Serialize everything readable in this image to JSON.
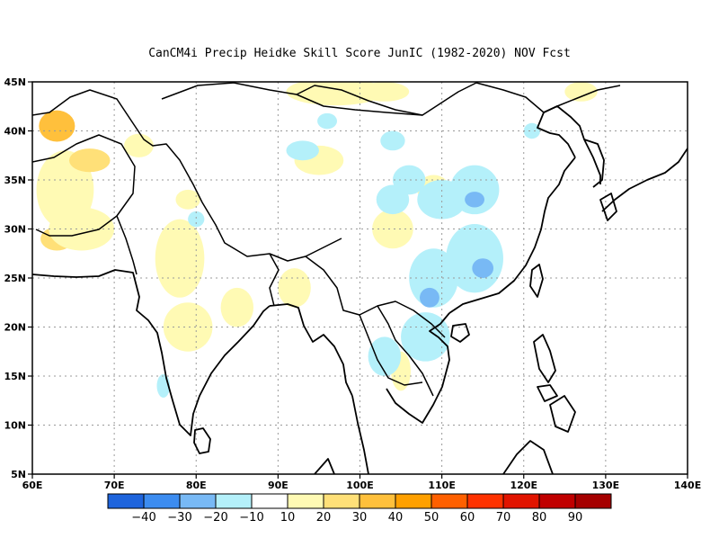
{
  "title": "CanCM4i Precip Heidke Skill Score JunIC (1982-2020) NOV Fcst",
  "map": {
    "lon_range": [
      60,
      140
    ],
    "lat_range": [
      5,
      45
    ],
    "lon_ticks": [
      "60E",
      "70E",
      "80E",
      "90E",
      "100E",
      "110E",
      "120E",
      "130E",
      "140E"
    ],
    "lat_ticks": [
      "5N",
      "10N",
      "15N",
      "20N",
      "25N",
      "30N",
      "35N",
      "40N",
      "45N"
    ],
    "grid": "dotted"
  },
  "colorbar": {
    "labels": [
      "-40",
      "-30",
      "-20",
      "-10",
      "10",
      "20",
      "30",
      "40",
      "50",
      "60",
      "70",
      "80",
      "90"
    ],
    "colors": [
      "#1e64dc",
      "#3c8cf0",
      "#78b9f5",
      "#b4f0fa",
      "#ffffff",
      "#fffab4",
      "#ffe078",
      "#ffc03c",
      "#ffa000",
      "#ff6000",
      "#ff3200",
      "#e11400",
      "#c00000",
      "#a50000"
    ]
  },
  "skill_patches": {
    "positive": [
      {
        "lon": 63,
        "lat": 40.5,
        "rx": 2.2,
        "ry": 1.6,
        "level": 2
      },
      {
        "lon": 64,
        "lat": 34,
        "rx": 3.5,
        "ry": 4,
        "level": 0
      },
      {
        "lon": 67,
        "lat": 37,
        "rx": 2.5,
        "ry": 1.2,
        "level": 1
      },
      {
        "lon": 63,
        "lat": 29,
        "rx": 2,
        "ry": 1.2,
        "level": 1
      },
      {
        "lon": 66,
        "lat": 30,
        "rx": 4,
        "ry": 2.2,
        "level": 0
      },
      {
        "lon": 73,
        "lat": 38.5,
        "rx": 1.8,
        "ry": 1.2,
        "level": 0
      },
      {
        "lon": 78,
        "lat": 27,
        "rx": 3,
        "ry": 4,
        "level": 0
      },
      {
        "lon": 79,
        "lat": 33,
        "rx": 1.5,
        "ry": 1,
        "level": 0
      },
      {
        "lon": 79,
        "lat": 20,
        "rx": 3,
        "ry": 2.5,
        "level": 0
      },
      {
        "lon": 85,
        "lat": 22,
        "rx": 2,
        "ry": 2,
        "level": 0
      },
      {
        "lon": 92,
        "lat": 24,
        "rx": 2,
        "ry": 2,
        "level": 0
      },
      {
        "lon": 95,
        "lat": 37,
        "rx": 3,
        "ry": 1.5,
        "level": 0
      },
      {
        "lon": 97,
        "lat": 44,
        "rx": 6,
        "ry": 1.4,
        "level": 0
      },
      {
        "lon": 103,
        "lat": 44,
        "rx": 3,
        "ry": 1,
        "level": 0
      },
      {
        "lon": 109,
        "lat": 34,
        "rx": 2,
        "ry": 1.5,
        "level": 0
      },
      {
        "lon": 104,
        "lat": 30,
        "rx": 2.5,
        "ry": 2,
        "level": 0
      },
      {
        "lon": 105,
        "lat": 15.5,
        "rx": 1.2,
        "ry": 2,
        "level": 0
      },
      {
        "lon": 127,
        "lat": 44,
        "rx": 2,
        "ry": 1,
        "level": 0
      }
    ],
    "negative": [
      {
        "lon": 93,
        "lat": 38,
        "rx": 2,
        "ry": 1,
        "level": 0
      },
      {
        "lon": 104,
        "lat": 39,
        "rx": 1.5,
        "ry": 1,
        "level": 0
      },
      {
        "lon": 104,
        "lat": 33,
        "rx": 2,
        "ry": 1.5,
        "level": 0
      },
      {
        "lon": 106,
        "lat": 35,
        "rx": 2,
        "ry": 1.5,
        "level": 0
      },
      {
        "lon": 110,
        "lat": 33,
        "rx": 3,
        "ry": 2,
        "level": 0
      },
      {
        "lon": 114,
        "lat": 34,
        "rx": 3,
        "ry": 2.5,
        "level": 0
      },
      {
        "lon": 114,
        "lat": 33,
        "rx": 1.2,
        "ry": 0.8,
        "level": 1
      },
      {
        "lon": 114,
        "lat": 27,
        "rx": 3.5,
        "ry": 3.5,
        "level": 0
      },
      {
        "lon": 115,
        "lat": 26,
        "rx": 1.3,
        "ry": 1,
        "level": 1
      },
      {
        "lon": 109,
        "lat": 25,
        "rx": 3,
        "ry": 3,
        "level": 0
      },
      {
        "lon": 108.5,
        "lat": 23,
        "rx": 1.2,
        "ry": 1,
        "level": 1
      },
      {
        "lon": 108,
        "lat": 19,
        "rx": 3,
        "ry": 2.5,
        "level": 0
      },
      {
        "lon": 103,
        "lat": 17,
        "rx": 2,
        "ry": 2,
        "level": 0
      },
      {
        "lon": 80,
        "lat": 31,
        "rx": 1,
        "ry": 0.8,
        "level": 0
      },
      {
        "lon": 76,
        "lat": 14,
        "rx": 0.8,
        "ry": 1.2,
        "level": 0
      },
      {
        "lon": 96,
        "lat": 41,
        "rx": 1.2,
        "ry": 0.8,
        "level": 0
      },
      {
        "lon": 121,
        "lat": 40,
        "rx": 1,
        "ry": 0.8,
        "level": 0
      }
    ]
  }
}
